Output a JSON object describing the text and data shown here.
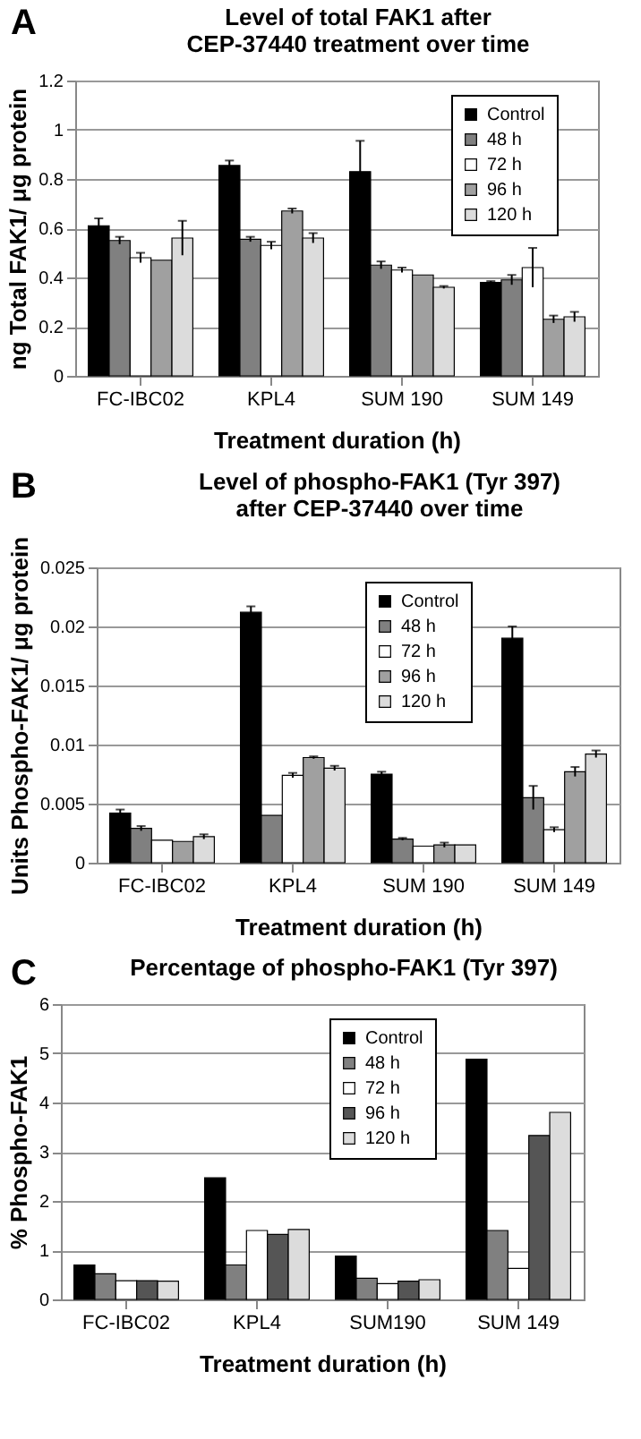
{
  "chart_data": [
    {
      "type": "bar",
      "title": "Level of total FAK1 after\nCEP-37440 treatment over time",
      "xlabel": "Treatment duration (h)",
      "ylabel": "ng Total FAK1/ μg protein",
      "annotations": [
        "A"
      ],
      "categories": [
        "FC-IBC02",
        "KPL4",
        "SUM 190",
        "SUM 149"
      ],
      "ylim": [
        0,
        1.2
      ],
      "yticks": [
        0,
        0.2,
        0.4,
        0.6,
        0.8,
        1,
        1.2
      ],
      "grid": "y",
      "legend": "top right",
      "series": [
        {
          "name": "Control",
          "color": "#000000",
          "values": [
            0.61,
            0.855,
            0.83,
            0.38
          ],
          "errors": [
            0.03,
            0.02,
            0.125,
            0.005
          ]
        },
        {
          "name": "48 h",
          "color": "#808080",
          "values": [
            0.55,
            0.555,
            0.45,
            0.39
          ],
          "errors": [
            0.015,
            0.01,
            0.015,
            0.02
          ]
        },
        {
          "name": "72 h",
          "color": "#ffffff",
          "values": [
            0.48,
            0.53,
            0.43,
            0.44
          ],
          "errors": [
            0.02,
            0.015,
            0.01,
            0.08
          ]
        },
        {
          "name": "96 h",
          "color": "#a0a0a0",
          "values": [
            0.47,
            0.67,
            0.41,
            0.23
          ],
          "errors": [
            null,
            0.01,
            null,
            0.015
          ]
        },
        {
          "name": "120 h",
          "color": "#dcdcdc",
          "values": [
            0.56,
            0.56,
            0.36,
            0.24
          ],
          "errors": [
            0.07,
            0.02,
            0.005,
            0.02
          ]
        }
      ]
    },
    {
      "type": "bar",
      "title": "Level of phospho-FAK1 (Tyr 397)\nafter CEP-37440 over time",
      "xlabel": "Treatment duration (h)",
      "ylabel": "Units Phospho-FAK1/ μg protein",
      "annotations": [
        "B"
      ],
      "categories": [
        "FC-IBC02",
        "KPL4",
        "SUM 190",
        "SUM 149"
      ],
      "ylim": [
        0,
        0.025
      ],
      "yticks": [
        0,
        0.005,
        0.01,
        0.015,
        0.02,
        0.025
      ],
      "grid": "y",
      "legend": "top right",
      "series": [
        {
          "name": "Control",
          "color": "#000000",
          "values": [
            0.0042,
            0.0212,
            0.0075,
            0.019
          ],
          "errors": [
            0.0003,
            0.0005,
            0.0002,
            0.001
          ]
        },
        {
          "name": "48 h",
          "color": "#808080",
          "values": [
            0.0029,
            0.004,
            0.002,
            0.0055
          ],
          "errors": [
            0.0002,
            null,
            0.0001,
            0.001
          ]
        },
        {
          "name": "72 h",
          "color": "#ffffff",
          "values": [
            0.0019,
            0.0074,
            0.0014,
            0.0028
          ],
          "errors": [
            null,
            0.0002,
            null,
            0.0002
          ]
        },
        {
          "name": "96 h",
          "color": "#a0a0a0",
          "values": [
            0.0018,
            0.0089,
            0.0015,
            0.0077
          ],
          "errors": [
            null,
            0.0001,
            0.0002,
            0.0004
          ]
        },
        {
          "name": "120 h",
          "color": "#dcdcdc",
          "values": [
            0.0022,
            0.008,
            0.0015,
            0.0092
          ],
          "errors": [
            0.0002,
            0.0002,
            null,
            0.0003
          ]
        }
      ]
    },
    {
      "type": "bar",
      "title": "Percentage of phospho-FAK1 (Tyr 397)",
      "xlabel": "Treatment duration (h)",
      "ylabel": "% Phospho-FAK1",
      "annotations": [
        "C"
      ],
      "categories": [
        "FC-IBC02",
        "KPL4",
        "SUM190",
        "SUM 149"
      ],
      "ylim": [
        0,
        6
      ],
      "yticks": [
        0,
        1,
        2,
        3,
        4,
        5,
        6
      ],
      "grid": "y",
      "legend": "top right",
      "series": [
        {
          "name": "Control",
          "color": "#000000",
          "values": [
            0.7,
            2.47,
            0.88,
            4.88
          ]
        },
        {
          "name": "48 h",
          "color": "#808080",
          "values": [
            0.52,
            0.7,
            0.43,
            1.4
          ]
        },
        {
          "name": "72 h",
          "color": "#ffffff",
          "values": [
            0.38,
            1.4,
            0.32,
            0.63
          ]
        },
        {
          "name": "96 h",
          "color": "#555555",
          "values": [
            0.38,
            1.32,
            0.37,
            3.33
          ]
        },
        {
          "name": "120 h",
          "color": "#dcdcdc",
          "values": [
            0.37,
            1.42,
            0.4,
            3.8
          ]
        }
      ]
    }
  ]
}
